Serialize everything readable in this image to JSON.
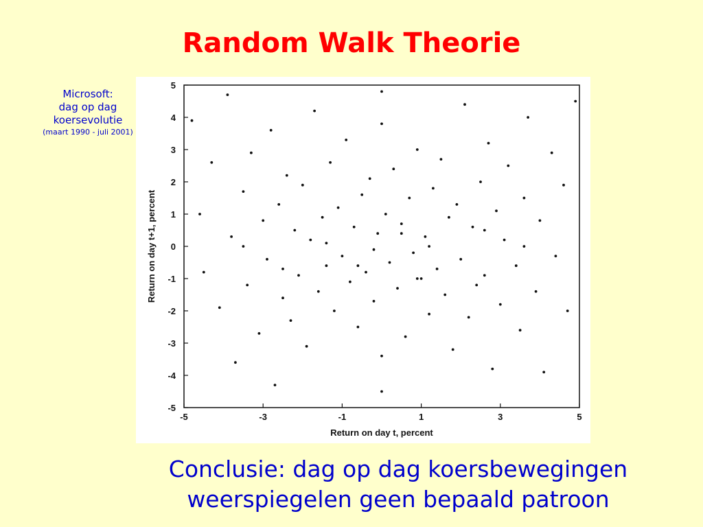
{
  "slide": {
    "title": "Random Walk Theorie",
    "side_label": {
      "line1": "Microsoft:",
      "line2": "dag op dag",
      "line3": "koersevolutie",
      "line4": "(maart 1990 - juli 2001)"
    },
    "conclusion": {
      "line1": "Conclusie: dag op dag koersbewegingen",
      "line2": "weerspiegelen geen bepaald patroon"
    }
  },
  "colors": {
    "title": "#ff0000",
    "text": "#0000cc",
    "background": "#ffffcc",
    "points": "#111111"
  },
  "chart_data": {
    "type": "scatter",
    "xlabel": "Return on day t, percent",
    "ylabel": "Return on day t+1, percent",
    "xlim": [
      -5,
      5
    ],
    "ylim": [
      -5,
      5
    ],
    "xticks": [
      "-5",
      "-3",
      "-1",
      "1",
      "3",
      "5"
    ],
    "yticks": [
      "5",
      "4",
      "3",
      "2",
      "1",
      "0",
      "-1",
      "-2",
      "-3",
      "-4",
      "-5"
    ],
    "grid": false,
    "points": [
      [
        -4.8,
        3.9
      ],
      [
        -4.6,
        1.0
      ],
      [
        -4.5,
        -0.8
      ],
      [
        -4.3,
        2.6
      ],
      [
        -4.1,
        -1.9
      ],
      [
        -3.9,
        4.7
      ],
      [
        -3.8,
        0.3
      ],
      [
        -3.7,
        -3.6
      ],
      [
        -3.5,
        1.7
      ],
      [
        -3.4,
        -1.2
      ],
      [
        -3.3,
        2.9
      ],
      [
        -3.1,
        -2.7
      ],
      [
        -3.0,
        0.8
      ],
      [
        -2.9,
        -0.4
      ],
      [
        -2.8,
        3.6
      ],
      [
        -2.7,
        -4.3
      ],
      [
        -2.6,
        1.3
      ],
      [
        -2.5,
        -1.6
      ],
      [
        -2.4,
        2.2
      ],
      [
        -2.3,
        -2.3
      ],
      [
        -2.2,
        0.5
      ],
      [
        -2.1,
        -0.9
      ],
      [
        -2.0,
        1.9
      ],
      [
        -1.9,
        -3.1
      ],
      [
        -1.8,
        0.2
      ],
      [
        -1.7,
        4.2
      ],
      [
        -1.6,
        -1.4
      ],
      [
        -1.5,
        0.9
      ],
      [
        -1.4,
        -0.6
      ],
      [
        -1.3,
        2.6
      ],
      [
        -1.2,
        -2.0
      ],
      [
        -1.1,
        1.2
      ],
      [
        -1.0,
        -0.3
      ],
      [
        -0.9,
        3.3
      ],
      [
        -0.8,
        -1.1
      ],
      [
        -0.7,
        0.6
      ],
      [
        -0.6,
        -2.5
      ],
      [
        -0.5,
        1.6
      ],
      [
        -0.4,
        -0.8
      ],
      [
        -0.3,
        2.1
      ],
      [
        -0.2,
        -1.7
      ],
      [
        -0.1,
        0.4
      ],
      [
        0.0,
        3.8
      ],
      [
        0.0,
        -3.4
      ],
      [
        0.1,
        1.0
      ],
      [
        0.2,
        -0.5
      ],
      [
        0.3,
        2.4
      ],
      [
        0.4,
        -1.3
      ],
      [
        0.5,
        0.7
      ],
      [
        0.6,
        -2.8
      ],
      [
        0.7,
        1.5
      ],
      [
        0.8,
        -0.2
      ],
      [
        0.9,
        3.0
      ],
      [
        1.0,
        -1.0
      ],
      [
        1.1,
        0.3
      ],
      [
        1.2,
        -2.1
      ],
      [
        1.3,
        1.8
      ],
      [
        1.4,
        -0.7
      ],
      [
        1.5,
        2.7
      ],
      [
        1.6,
        -1.5
      ],
      [
        1.7,
        0.9
      ],
      [
        1.8,
        -3.2
      ],
      [
        1.9,
        1.3
      ],
      [
        2.0,
        -0.4
      ],
      [
        2.1,
        4.4
      ],
      [
        2.2,
        -2.2
      ],
      [
        2.3,
        0.6
      ],
      [
        2.4,
        -1.2
      ],
      [
        2.5,
        2.0
      ],
      [
        2.6,
        -0.9
      ],
      [
        2.7,
        3.2
      ],
      [
        2.8,
        -3.8
      ],
      [
        2.9,
        1.1
      ],
      [
        3.0,
        -1.8
      ],
      [
        3.1,
        0.2
      ],
      [
        3.2,
        2.5
      ],
      [
        3.4,
        -0.6
      ],
      [
        3.5,
        -2.6
      ],
      [
        3.6,
        1.5
      ],
      [
        3.7,
        4.0
      ],
      [
        3.9,
        -1.4
      ],
      [
        4.0,
        0.8
      ],
      [
        4.1,
        -3.9
      ],
      [
        4.3,
        2.9
      ],
      [
        4.4,
        -0.3
      ],
      [
        4.6,
        1.9
      ],
      [
        4.7,
        -2.0
      ],
      [
        4.9,
        4.5
      ],
      [
        -0.6,
        -0.6
      ],
      [
        0.5,
        0.4
      ],
      [
        -1.4,
        0.1
      ],
      [
        1.2,
        0.0
      ],
      [
        -0.2,
        -0.1
      ],
      [
        0.9,
        -1.0
      ],
      [
        -2.5,
        -0.7
      ],
      [
        2.6,
        0.5
      ],
      [
        -3.5,
        0.0
      ],
      [
        3.6,
        0.0
      ],
      [
        0.0,
        -4.5
      ],
      [
        0.0,
        4.8
      ]
    ]
  }
}
